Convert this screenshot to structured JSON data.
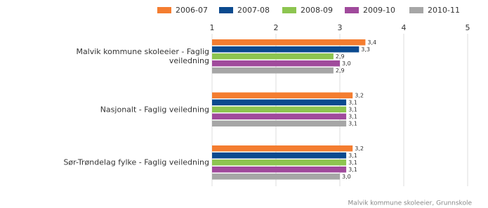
{
  "chart_data": {
    "type": "hbar",
    "categories": [
      "Malvik kommune skoleeier - Faglig veiledning",
      "Nasjonalt - Faglig veiledning",
      "Sør-Trøndelag fylke - Faglig veiledning"
    ],
    "series": [
      {
        "name": "2006-07",
        "color": "#f47d30",
        "values": [
          3.4,
          3.2,
          3.2
        ],
        "value_labels": [
          "3,4",
          "3,2",
          "3,2"
        ]
      },
      {
        "name": "2007-08",
        "color": "#0b4a8f",
        "values": [
          3.3,
          3.1,
          3.1
        ],
        "value_labels": [
          "3,3",
          "3,1",
          "3,1"
        ]
      },
      {
        "name": "2008-09",
        "color": "#8dc550",
        "values": [
          2.9,
          3.1,
          3.1
        ],
        "value_labels": [
          "2,9",
          "3,1",
          "3,1"
        ]
      },
      {
        "name": "2009-10",
        "color": "#a04a9c",
        "values": [
          3.0,
          3.1,
          3.1
        ],
        "value_labels": [
          "3,0",
          "3,1",
          "3,1"
        ]
      },
      {
        "name": "2010-11",
        "color": "#a6a6a6",
        "values": [
          2.9,
          3.1,
          3.0
        ],
        "value_labels": [
          "2,9",
          "3,1",
          "3,0"
        ]
      }
    ],
    "xlim": [
      1,
      5
    ],
    "xticks": [
      1,
      2,
      3,
      4,
      5
    ],
    "grid": true,
    "legend_position": "top",
    "footer": "Malvik kommune skoleeier, Grunnskole"
  }
}
